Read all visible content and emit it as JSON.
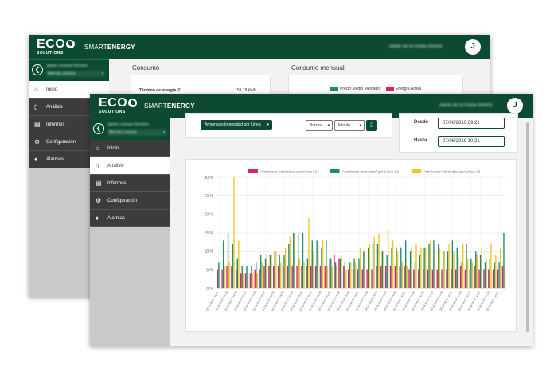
{
  "app": {
    "logo_text": "ECO",
    "logo_subtext": "SOLUTIONS",
    "brand_light": "SMART",
    "brand_bold": "ENERGY",
    "user_name": "Jaime de la Rubia Molina",
    "avatar_initial": "J",
    "sidebar_user_line1": "Jaime Lorenzo Romero",
    "sidebar_user_line2": "Mercat Lorenzo"
  },
  "nav": [
    {
      "label": "Inicio",
      "icon": "home-icon"
    },
    {
      "label": "Análisis",
      "icon": "chart-icon"
    },
    {
      "label": "Informes",
      "icon": "document-icon"
    },
    {
      "label": "Configuración",
      "icon": "gear-icon"
    },
    {
      "label": "Alarmas",
      "icon": "bell-icon"
    }
  ],
  "back_window": {
    "active_nav": 0,
    "consumo_title": "Consumo",
    "consumo_mensual_title": "Consumo mensual",
    "termino_label": "Término de energía P1",
    "termino_value": "159,18 kWh",
    "legend": [
      "Precio Medio Mercado",
      "Energía Activa"
    ],
    "legend_colors": [
      "#1a8a7a",
      "#e0216a"
    ]
  },
  "front_window": {
    "active_nav": 1,
    "measure_select": "Armónicos Intensidad por Línea",
    "chart_type_select": "Barras",
    "interval_select": "Minuto",
    "desde_label": "Desde",
    "desde_value": "07/06/2019 09:21",
    "hasta_label": "Hasta",
    "hasta_value": "07/06/2019 10:21"
  },
  "chart_data": {
    "type": "bar",
    "series": [
      {
        "name": "Armónicos Intensidad por Línea L1",
        "color": "#e0216a",
        "values": [
          5,
          5,
          6,
          6,
          5,
          4,
          4,
          4,
          5,
          5,
          6,
          6,
          6,
          6,
          6,
          6,
          6,
          6,
          6,
          6,
          6,
          6,
          6,
          6,
          8,
          9,
          8,
          6,
          5,
          5,
          5,
          5,
          5,
          5,
          6,
          6,
          6,
          6,
          6,
          6,
          6,
          5,
          5,
          5,
          5,
          5,
          5,
          5,
          5,
          5,
          5,
          5,
          6,
          5,
          5,
          6,
          5,
          5,
          5,
          5,
          5,
          6
        ]
      },
      {
        "name": "Armónicos Intensidad por Línea L2",
        "color": "#1a8a7a",
        "values": [
          7,
          13,
          15,
          12,
          8,
          6,
          6,
          6,
          7,
          9,
          8,
          9,
          10,
          9,
          9,
          12,
          15,
          15,
          15,
          8,
          13,
          13,
          11,
          13,
          8,
          7,
          8,
          7,
          7,
          8,
          8,
          10,
          11,
          12,
          12,
          10,
          9,
          11,
          11,
          11,
          13,
          10,
          7,
          9,
          11,
          12,
          13,
          12,
          10,
          10,
          13,
          11,
          7,
          12,
          8,
          10,
          9,
          7,
          8,
          7,
          7,
          15
        ]
      },
      {
        "name": "Armónicos Intensidad por Línea L3",
        "color": "#f5c518",
        "values": [
          6,
          6,
          7,
          30,
          13,
          4,
          4,
          4,
          4,
          7,
          9,
          9,
          10,
          7,
          11,
          14,
          15,
          8,
          7,
          19,
          10,
          12,
          13,
          6,
          6,
          6,
          9,
          5,
          7,
          7,
          11,
          11,
          12,
          14,
          15,
          10,
          16,
          13,
          10,
          7,
          6,
          11,
          12,
          11,
          11,
          13,
          10,
          11,
          10,
          12,
          10,
          9,
          12,
          8,
          7,
          9,
          11,
          8,
          12,
          9,
          11,
          5
        ]
      }
    ],
    "x_labels": [
      "2019-06-07 09:21",
      "2019-06-07 09:23",
      "2019-06-07 09:25",
      "2019-06-07 09:27",
      "2019-06-07 09:29",
      "2019-06-07 09:31",
      "2019-06-07 09:33",
      "2019-06-07 09:35",
      "2019-06-07 09:37",
      "2019-06-07 09:39",
      "2019-06-07 09:41",
      "2019-06-07 09:43",
      "2019-06-07 09:45",
      "2019-06-07 09:47",
      "2019-06-07 09:49",
      "2019-06-07 09:51",
      "2019-06-07 09:53",
      "2019-06-07 09:55",
      "2019-06-07 09:57",
      "2019-06-07 09:59",
      "2019-06-07 10:01",
      "2019-06-07 10:03",
      "2019-06-07 10:05",
      "2019-06-07 10:07",
      "2019-06-07 10:09",
      "2019-06-07 10:11",
      "2019-06-07 10:13",
      "2019-06-07 10:15",
      "2019-06-07 10:17",
      "2019-06-07 10:19",
      "2019-06-07 10:21"
    ],
    "y_ticks": [
      "0 %",
      "5 %",
      "10 %",
      "15 %",
      "20 %",
      "25 %",
      "30 %"
    ],
    "ylim": [
      0,
      30
    ],
    "grid": true,
    "legend_position": "top-center"
  }
}
